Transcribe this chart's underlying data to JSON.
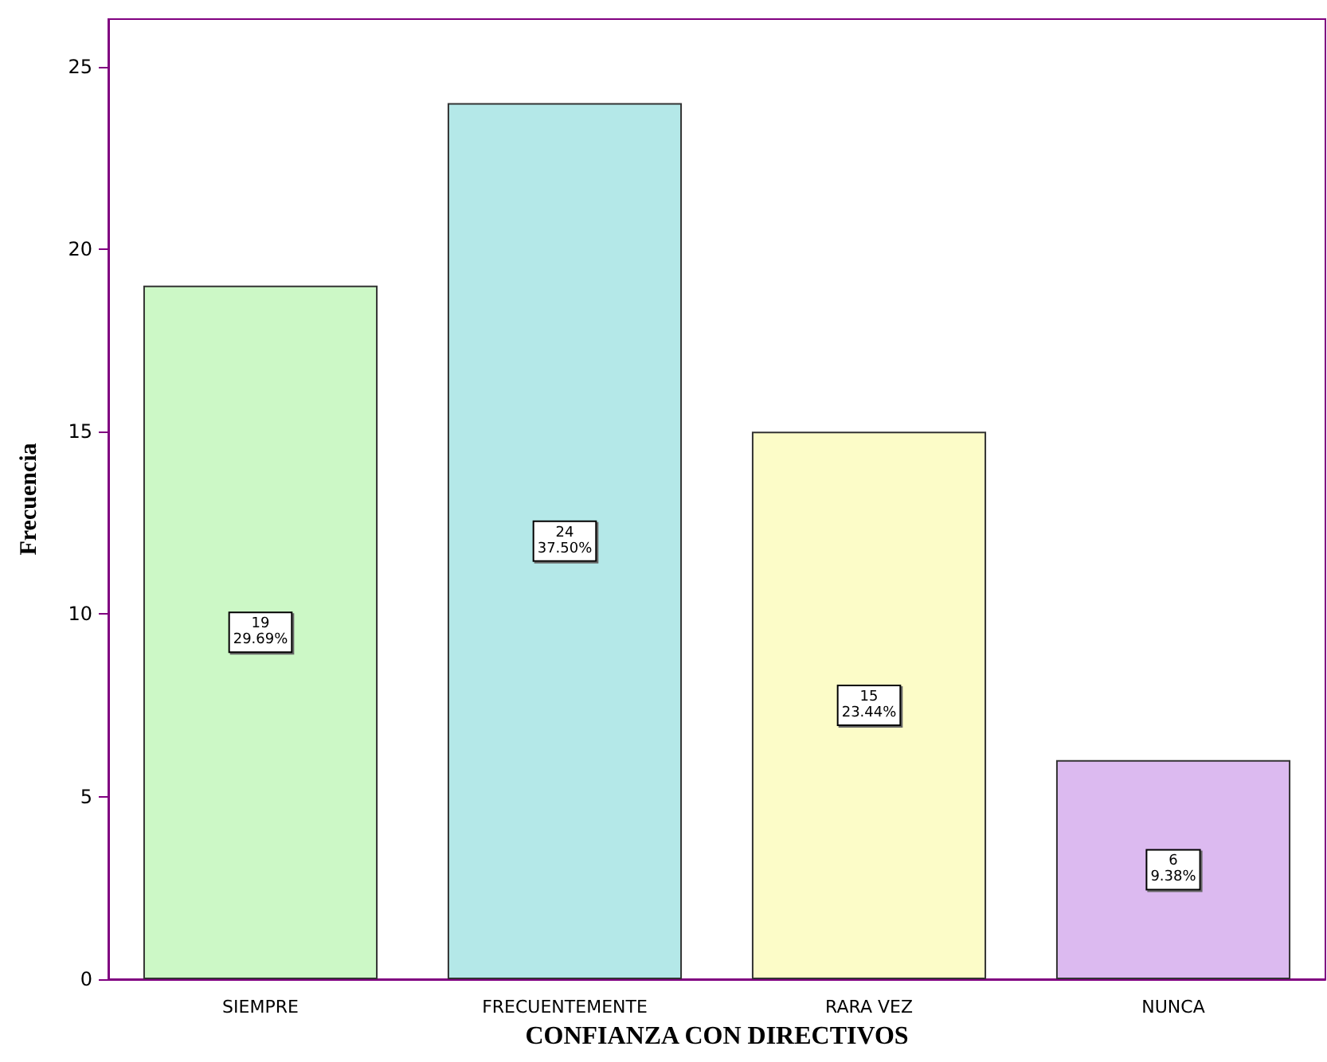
{
  "chart_data": {
    "type": "bar",
    "xlabel": "CONFIANZA CON DIRECTIVOS",
    "ylabel": "Frecuencia",
    "categories": [
      "SIEMPRE",
      "FRECUENTEMENTE",
      "RARA VEZ",
      "NUNCA"
    ],
    "values": [
      19,
      24,
      15,
      6
    ],
    "colors": [
      "#ccf8c6",
      "#b4e8e8",
      "#fcfcc8",
      "#dcbaf0"
    ],
    "value_labels": [
      "19\n29.69%",
      "24\n37.50%",
      "15\n23.44%",
      "6\n9.38%"
    ],
    "ylim": [
      0,
      26.3
    ],
    "yticks": [
      0,
      5,
      10,
      15,
      20,
      25
    ]
  }
}
